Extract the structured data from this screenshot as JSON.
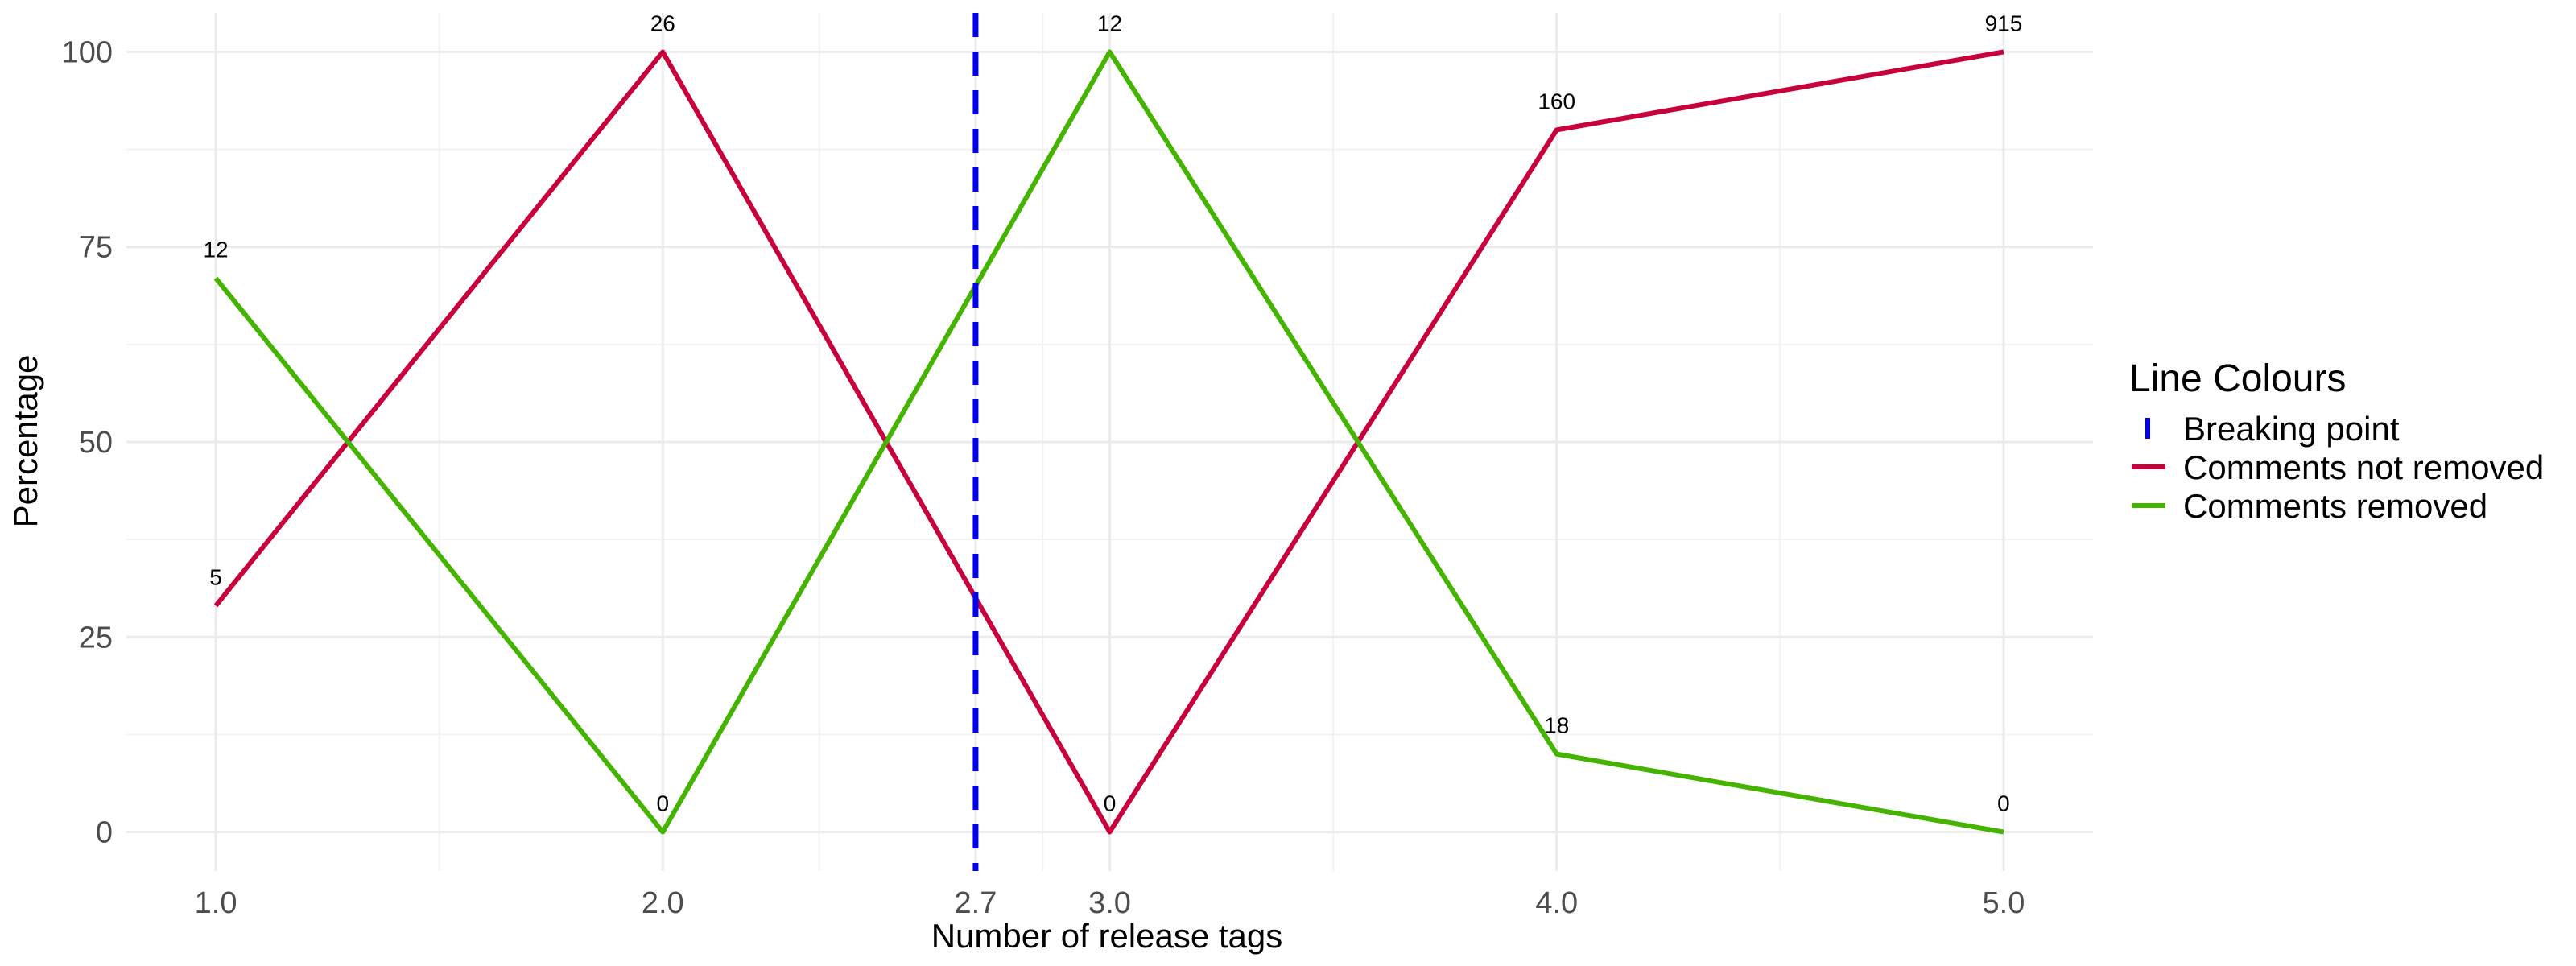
{
  "chart_data": {
    "type": "line",
    "xlabel": "Number of release tags",
    "ylabel": "Percentage",
    "x_ticks": [
      1.0,
      2.0,
      2.7,
      3.0,
      4.0,
      5.0
    ],
    "x_tick_labels": [
      "1.0",
      "2.0",
      "2.7",
      "3.0",
      "4.0",
      "5.0"
    ],
    "y_ticks": [
      0,
      25,
      50,
      75,
      100
    ],
    "y_tick_labels": [
      "0",
      "25",
      "50",
      "75",
      "100"
    ],
    "xlim": [
      0.8,
      5.2
    ],
    "ylim": [
      -5,
      105
    ],
    "grid": true,
    "legend": {
      "title": "Line Colours",
      "placement": "right",
      "entries": [
        {
          "label": "Breaking point",
          "color": "#0000ee",
          "style": "dashed-vertical"
        },
        {
          "label": "Comments not removed",
          "color": "#c8003c",
          "style": "solid"
        },
        {
          "label": "Comments removed",
          "color": "#44b400",
          "style": "solid"
        }
      ]
    },
    "breaking_point": {
      "x": 2.7,
      "color": "#0000ee"
    },
    "series": [
      {
        "name": "Comments not removed",
        "color": "#c8003c",
        "x": [
          1.0,
          2.0,
          3.0,
          4.0,
          5.0
        ],
        "y": [
          29,
          100,
          0,
          90,
          100
        ],
        "labels": [
          "5",
          "26",
          "0",
          "160",
          "915"
        ]
      },
      {
        "name": "Comments removed",
        "color": "#44b400",
        "x": [
          1.0,
          2.0,
          3.0,
          4.0,
          5.0
        ],
        "y": [
          71,
          0,
          100,
          10,
          0
        ],
        "labels": [
          "12",
          "0",
          "12",
          "18",
          "0"
        ]
      }
    ]
  }
}
